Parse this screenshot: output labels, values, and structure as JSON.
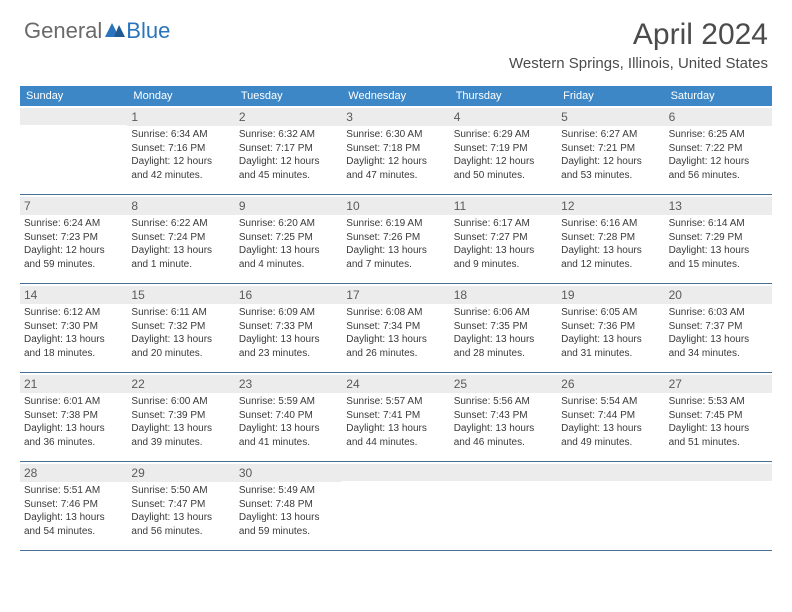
{
  "logo": {
    "text1": "General",
    "text2": "Blue"
  },
  "title": "April 2024",
  "location": "Western Springs, Illinois, United States",
  "colors": {
    "header_bg": "#3d87c7",
    "header_text": "#ffffff",
    "daynum_bg": "#ececec",
    "border": "#4a6f93",
    "body_text": "#3a3a3a",
    "title_text": "#4b4b4b",
    "logo_gray": "#6a6a6a",
    "logo_blue": "#2a74bd"
  },
  "day_names": [
    "Sunday",
    "Monday",
    "Tuesday",
    "Wednesday",
    "Thursday",
    "Friday",
    "Saturday"
  ],
  "weeks": [
    [
      null,
      {
        "n": "1",
        "sr": "Sunrise: 6:34 AM",
        "ss": "Sunset: 7:16 PM",
        "dl1": "Daylight: 12 hours",
        "dl2": "and 42 minutes."
      },
      {
        "n": "2",
        "sr": "Sunrise: 6:32 AM",
        "ss": "Sunset: 7:17 PM",
        "dl1": "Daylight: 12 hours",
        "dl2": "and 45 minutes."
      },
      {
        "n": "3",
        "sr": "Sunrise: 6:30 AM",
        "ss": "Sunset: 7:18 PM",
        "dl1": "Daylight: 12 hours",
        "dl2": "and 47 minutes."
      },
      {
        "n": "4",
        "sr": "Sunrise: 6:29 AM",
        "ss": "Sunset: 7:19 PM",
        "dl1": "Daylight: 12 hours",
        "dl2": "and 50 minutes."
      },
      {
        "n": "5",
        "sr": "Sunrise: 6:27 AM",
        "ss": "Sunset: 7:21 PM",
        "dl1": "Daylight: 12 hours",
        "dl2": "and 53 minutes."
      },
      {
        "n": "6",
        "sr": "Sunrise: 6:25 AM",
        "ss": "Sunset: 7:22 PM",
        "dl1": "Daylight: 12 hours",
        "dl2": "and 56 minutes."
      }
    ],
    [
      {
        "n": "7",
        "sr": "Sunrise: 6:24 AM",
        "ss": "Sunset: 7:23 PM",
        "dl1": "Daylight: 12 hours",
        "dl2": "and 59 minutes."
      },
      {
        "n": "8",
        "sr": "Sunrise: 6:22 AM",
        "ss": "Sunset: 7:24 PM",
        "dl1": "Daylight: 13 hours",
        "dl2": "and 1 minute."
      },
      {
        "n": "9",
        "sr": "Sunrise: 6:20 AM",
        "ss": "Sunset: 7:25 PM",
        "dl1": "Daylight: 13 hours",
        "dl2": "and 4 minutes."
      },
      {
        "n": "10",
        "sr": "Sunrise: 6:19 AM",
        "ss": "Sunset: 7:26 PM",
        "dl1": "Daylight: 13 hours",
        "dl2": "and 7 minutes."
      },
      {
        "n": "11",
        "sr": "Sunrise: 6:17 AM",
        "ss": "Sunset: 7:27 PM",
        "dl1": "Daylight: 13 hours",
        "dl2": "and 9 minutes."
      },
      {
        "n": "12",
        "sr": "Sunrise: 6:16 AM",
        "ss": "Sunset: 7:28 PM",
        "dl1": "Daylight: 13 hours",
        "dl2": "and 12 minutes."
      },
      {
        "n": "13",
        "sr": "Sunrise: 6:14 AM",
        "ss": "Sunset: 7:29 PM",
        "dl1": "Daylight: 13 hours",
        "dl2": "and 15 minutes."
      }
    ],
    [
      {
        "n": "14",
        "sr": "Sunrise: 6:12 AM",
        "ss": "Sunset: 7:30 PM",
        "dl1": "Daylight: 13 hours",
        "dl2": "and 18 minutes."
      },
      {
        "n": "15",
        "sr": "Sunrise: 6:11 AM",
        "ss": "Sunset: 7:32 PM",
        "dl1": "Daylight: 13 hours",
        "dl2": "and 20 minutes."
      },
      {
        "n": "16",
        "sr": "Sunrise: 6:09 AM",
        "ss": "Sunset: 7:33 PM",
        "dl1": "Daylight: 13 hours",
        "dl2": "and 23 minutes."
      },
      {
        "n": "17",
        "sr": "Sunrise: 6:08 AM",
        "ss": "Sunset: 7:34 PM",
        "dl1": "Daylight: 13 hours",
        "dl2": "and 26 minutes."
      },
      {
        "n": "18",
        "sr": "Sunrise: 6:06 AM",
        "ss": "Sunset: 7:35 PM",
        "dl1": "Daylight: 13 hours",
        "dl2": "and 28 minutes."
      },
      {
        "n": "19",
        "sr": "Sunrise: 6:05 AM",
        "ss": "Sunset: 7:36 PM",
        "dl1": "Daylight: 13 hours",
        "dl2": "and 31 minutes."
      },
      {
        "n": "20",
        "sr": "Sunrise: 6:03 AM",
        "ss": "Sunset: 7:37 PM",
        "dl1": "Daylight: 13 hours",
        "dl2": "and 34 minutes."
      }
    ],
    [
      {
        "n": "21",
        "sr": "Sunrise: 6:01 AM",
        "ss": "Sunset: 7:38 PM",
        "dl1": "Daylight: 13 hours",
        "dl2": "and 36 minutes."
      },
      {
        "n": "22",
        "sr": "Sunrise: 6:00 AM",
        "ss": "Sunset: 7:39 PM",
        "dl1": "Daylight: 13 hours",
        "dl2": "and 39 minutes."
      },
      {
        "n": "23",
        "sr": "Sunrise: 5:59 AM",
        "ss": "Sunset: 7:40 PM",
        "dl1": "Daylight: 13 hours",
        "dl2": "and 41 minutes."
      },
      {
        "n": "24",
        "sr": "Sunrise: 5:57 AM",
        "ss": "Sunset: 7:41 PM",
        "dl1": "Daylight: 13 hours",
        "dl2": "and 44 minutes."
      },
      {
        "n": "25",
        "sr": "Sunrise: 5:56 AM",
        "ss": "Sunset: 7:43 PM",
        "dl1": "Daylight: 13 hours",
        "dl2": "and 46 minutes."
      },
      {
        "n": "26",
        "sr": "Sunrise: 5:54 AM",
        "ss": "Sunset: 7:44 PM",
        "dl1": "Daylight: 13 hours",
        "dl2": "and 49 minutes."
      },
      {
        "n": "27",
        "sr": "Sunrise: 5:53 AM",
        "ss": "Sunset: 7:45 PM",
        "dl1": "Daylight: 13 hours",
        "dl2": "and 51 minutes."
      }
    ],
    [
      {
        "n": "28",
        "sr": "Sunrise: 5:51 AM",
        "ss": "Sunset: 7:46 PM",
        "dl1": "Daylight: 13 hours",
        "dl2": "and 54 minutes."
      },
      {
        "n": "29",
        "sr": "Sunrise: 5:50 AM",
        "ss": "Sunset: 7:47 PM",
        "dl1": "Daylight: 13 hours",
        "dl2": "and 56 minutes."
      },
      {
        "n": "30",
        "sr": "Sunrise: 5:49 AM",
        "ss": "Sunset: 7:48 PM",
        "dl1": "Daylight: 13 hours",
        "dl2": "and 59 minutes."
      },
      null,
      null,
      null,
      null
    ]
  ]
}
